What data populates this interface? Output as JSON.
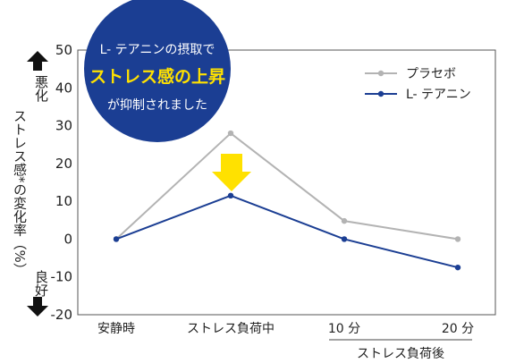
{
  "chart_data": {
    "type": "line",
    "categories": [
      "安静時",
      "ストレス負荷中",
      "10 分",
      "20 分"
    ],
    "x_group_label": "ストレス負荷後",
    "ylabel": "ストレス感*の変化率（%）",
    "y_direction_labels": {
      "top": "悪化",
      "bottom": "良好"
    },
    "ylim": [
      -20,
      50
    ],
    "yticks": [
      "50",
      "40",
      "30",
      "20",
      "10",
      "0",
      "-10",
      "-20"
    ],
    "legend_position": "top-right",
    "series": [
      {
        "name": "プラセボ",
        "color": "#b3b3b3",
        "values": [
          0,
          28,
          4.8,
          0
        ]
      },
      {
        "name": "L- テアニン",
        "color": "#1b3e93",
        "values": [
          0,
          11.5,
          0,
          -7.5
        ]
      }
    ],
    "annotation": {
      "line1": "L- テアニンの摂取で",
      "line2": "ストレス感の上昇",
      "line3": "が抑制されました",
      "circle_color": "#1b3e93",
      "arrow_color": "#ffe100"
    }
  }
}
